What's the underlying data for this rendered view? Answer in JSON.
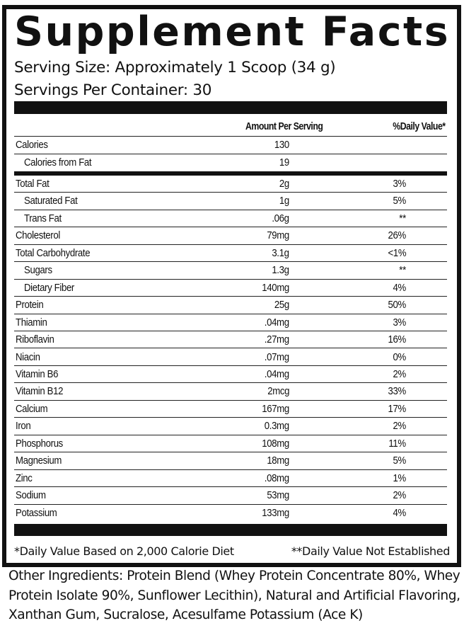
{
  "label": {
    "title": "Supplement Facts",
    "serving_size": "Serving Size: Approximately 1 Scoop (34 g)",
    "servings_per_container": "Servings Per Container: 30",
    "header": {
      "amount": "Amount Per Serving",
      "daily_value": "%Daily Value*"
    },
    "calorie_rows": [
      {
        "name": "Calories",
        "amount": "130",
        "dv": ""
      },
      {
        "name": "Calories from Fat",
        "amount": "19",
        "dv": ""
      }
    ],
    "nutrient_rows": [
      {
        "name": "Total Fat",
        "amount": "2g",
        "dv": "3%"
      },
      {
        "name": "Saturated Fat",
        "amount": "1g",
        "dv": "5%"
      },
      {
        "name": "Trans Fat",
        "amount": ".06g",
        "dv": "**"
      },
      {
        "name": "Cholesterol",
        "amount": "79mg",
        "dv": "26%"
      },
      {
        "name": "Total Carbohydrate",
        "amount": "3.1g",
        "dv": "<1%"
      },
      {
        "name": "Sugars",
        "amount": "1.3g",
        "dv": "**"
      },
      {
        "name": "Dietary Fiber",
        "amount": "140mg",
        "dv": "4%"
      },
      {
        "name": "Protein",
        "amount": "25g",
        "dv": "50%"
      },
      {
        "name": "Thiamin",
        "amount": ".04mg",
        "dv": "3%"
      },
      {
        "name": "Riboflavin",
        "amount": ".27mg",
        "dv": "16%"
      },
      {
        "name": "Niacin",
        "amount": ".07mg",
        "dv": "0%"
      },
      {
        "name": "Vitamin B6",
        "amount": ".04mg",
        "dv": "2%"
      },
      {
        "name": "Vitamin B12",
        "amount": "2mcg",
        "dv": "33%"
      },
      {
        "name": "Calcium",
        "amount": "167mg",
        "dv": "17%"
      },
      {
        "name": "Iron",
        "amount": "0.3mg",
        "dv": "2%"
      },
      {
        "name": "Phosphorus",
        "amount": "108mg",
        "dv": "11%"
      },
      {
        "name": "Magnesium",
        "amount": "18mg",
        "dv": "5%"
      },
      {
        "name": "Zinc",
        "amount": ".08mg",
        "dv": "1%"
      },
      {
        "name": "Sodium",
        "amount": "53mg",
        "dv": "2%"
      },
      {
        "name": "Potassium",
        "amount": "133mg",
        "dv": "4%"
      }
    ],
    "footnote_daily_value": "*Daily Value Based on 2,000 Calorie Diet",
    "footnote_not_established": "**Daily Value Not Established"
  },
  "other_ingredients": "Other Ingredients: Protein Blend (Whey Protein Concentrate 80%, Whey Protein Isolate 90%, Sunflower Lecithin), Natural and Artificial Flavoring, Xanthan Gum, Sucralose, Acesulfame Potassium (Ace K)"
}
